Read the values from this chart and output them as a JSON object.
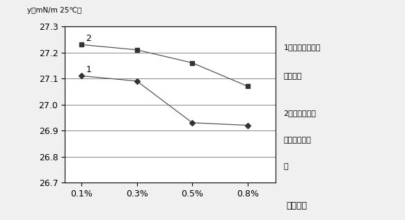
{
  "x_labels": [
    "0.1%",
    "0.3%",
    "0.5%",
    "0.8%"
  ],
  "x_values": [
    0,
    1,
    2,
    3
  ],
  "series1_values": [
    27.11,
    27.09,
    26.93,
    26.92
  ],
  "series2_values": [
    27.23,
    27.21,
    27.16,
    27.07
  ],
  "series1_marker": "D",
  "series2_marker": "s",
  "series1_label": "1",
  "series2_label": "2",
  "ylim": [
    26.7,
    27.3
  ],
  "yticks": [
    26.7,
    26.8,
    26.9,
    27.0,
    27.1,
    27.2,
    27.3
  ],
  "ylabel_top": "y（mN/m 25℃）",
  "xlabel_end": "添加比例",
  "legend1_line1": "1：水溶性丙烯酸",
  "legend1_line2": "酯流平允",
  "legend2_line1": "2：水溶性含氟",
  "legend2_line2": "丙烯酸酯流平",
  "legend2_line3": "允",
  "line_color": "#555555",
  "marker_color": "#333333",
  "bg_color": "#f0f0f0",
  "plot_bg_color": "#ffffff",
  "grid_color": "#888888",
  "font_size": 9,
  "label_font_size": 8.5
}
